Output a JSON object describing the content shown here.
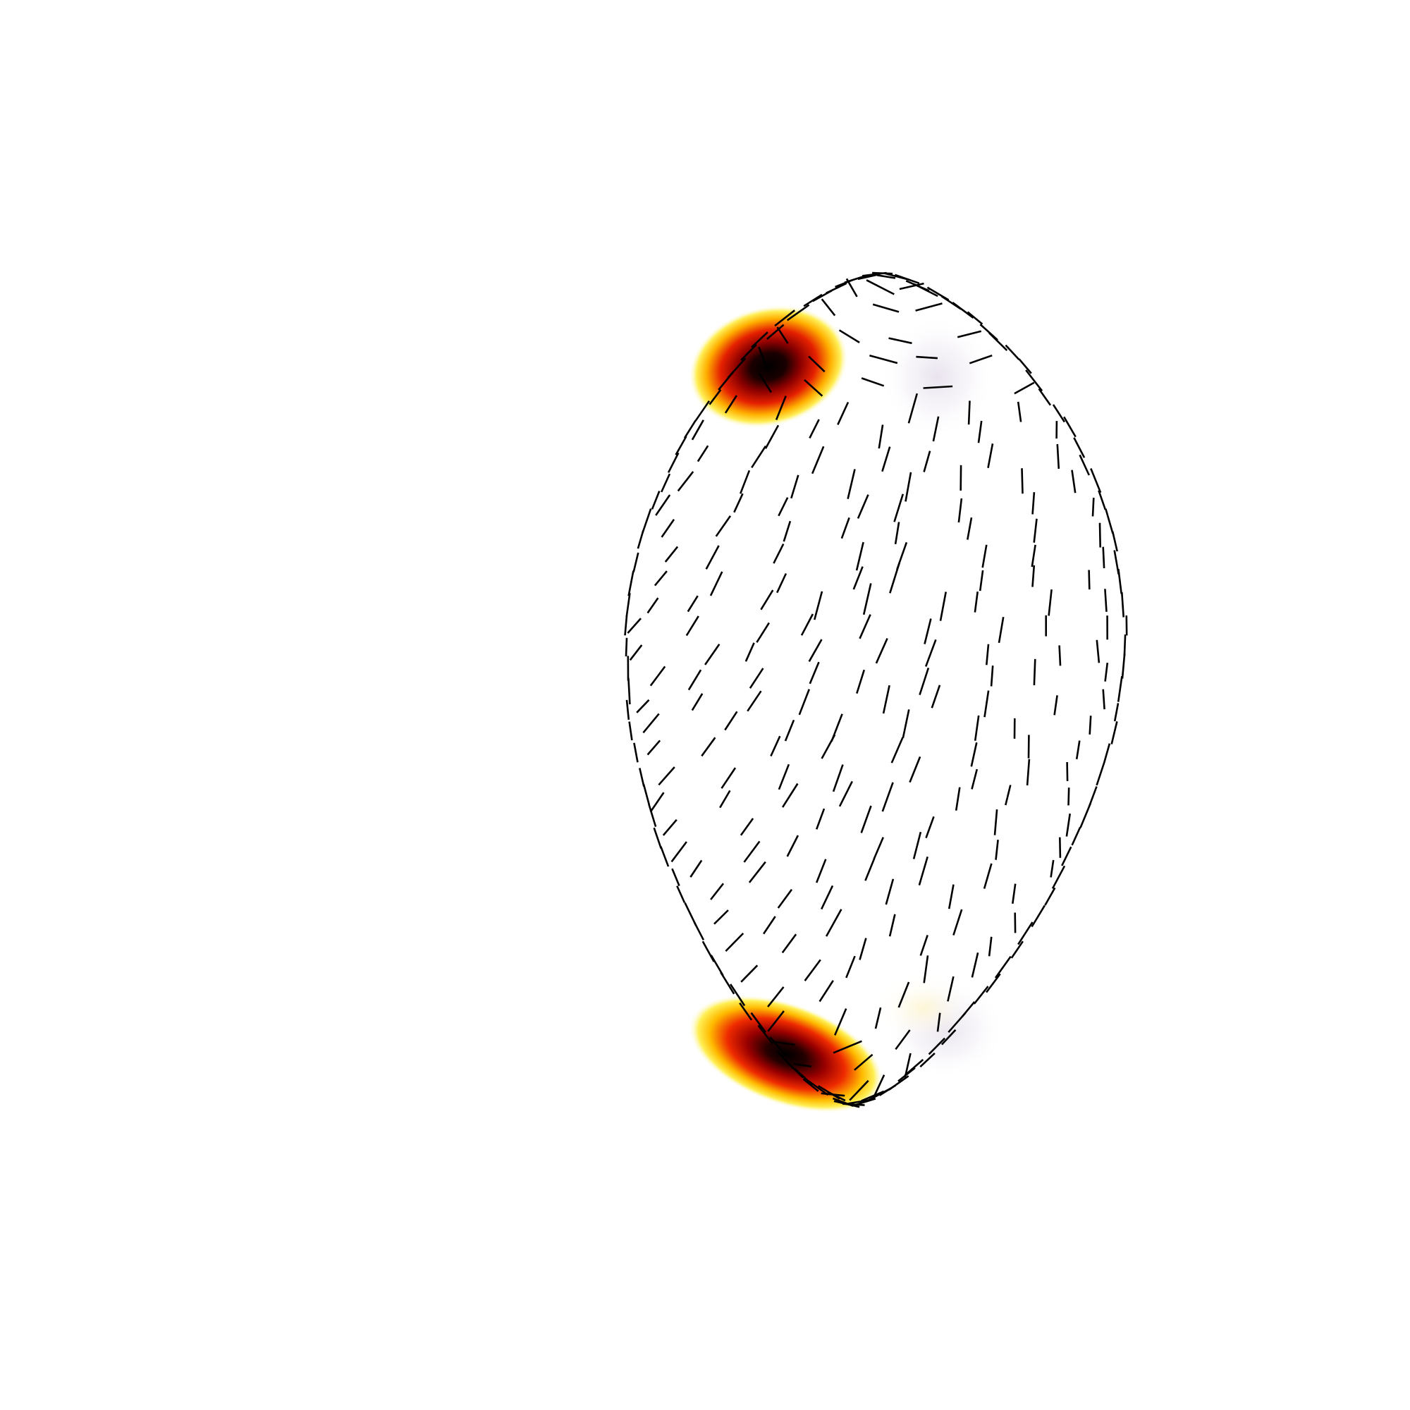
{
  "figure": {
    "description_colors": {
      "background": "#ffffff",
      "stroke": "#000000",
      "hot_core": "#000000",
      "hot_mid": "#8b0000",
      "hot_outer": "#ff2a00",
      "hot_edge": "#ffd200",
      "faint_spot": "#eee9f2"
    }
  }
}
